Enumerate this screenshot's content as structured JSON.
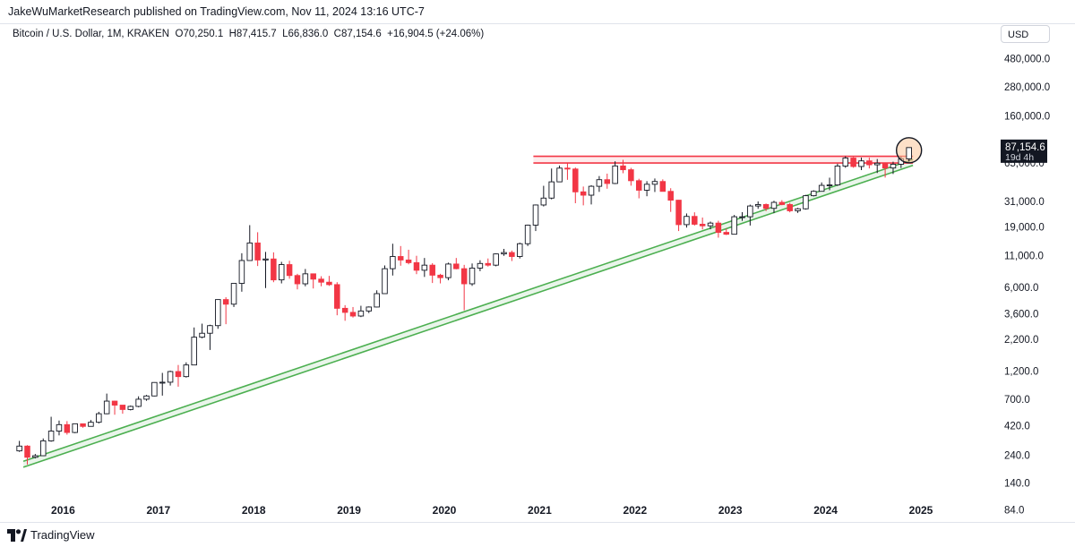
{
  "publish_line": "JakeWuMarketResearch published on TradingView.com, Nov 11, 2024 13:16 UTC-7",
  "symbol": {
    "name": "Bitcoin / U.S. Dollar, 1M, KRAKEN",
    "open_label": "O70,250.1",
    "high_label": "H87,415.7",
    "low_label": "L66,836.0",
    "close_label": "C87,154.6",
    "change_label": "+16,904.5 (+24.06%)"
  },
  "currency_button": "USD",
  "brand": "TradingView",
  "colors": {
    "up_candle": "#ffffff",
    "down_candle": "#f23645",
    "wick": "#131722",
    "resistance": "#f23645",
    "support": "#4caf50",
    "highlight": "#fbc79a"
  },
  "chart_data": {
    "type": "candlestick",
    "scale": "log",
    "x_ticks": [
      "2016",
      "2017",
      "2018",
      "2019",
      "2020",
      "2021",
      "2022",
      "2023",
      "2024",
      "2025"
    ],
    "y_ticks": [
      "480,000.0",
      "280,000.0",
      "160,000.0",
      "65,000.0",
      "31,000.0",
      "19,000.0",
      "11,000.0",
      "6,000.0",
      "3,600.0",
      "2,200.0",
      "1,200.0",
      "700.0",
      "420.0",
      "240.0",
      "140.0",
      "84.0"
    ],
    "last_price_label": "87,154.6",
    "countdown_label": "19d 4h",
    "ohlc_monthly": [
      [
        "2015-07",
        260,
        315,
        255,
        285
      ],
      [
        "2015-08",
        285,
        290,
        200,
        230
      ],
      [
        "2015-09",
        230,
        245,
        225,
        237
      ],
      [
        "2015-10",
        237,
        330,
        235,
        315
      ],
      [
        "2015-11",
        315,
        500,
        310,
        380
      ],
      [
        "2015-12",
        380,
        465,
        350,
        430
      ],
      [
        "2016-01",
        430,
        460,
        355,
        370
      ],
      [
        "2016-02",
        370,
        440,
        365,
        437
      ],
      [
        "2016-03",
        437,
        440,
        405,
        416
      ],
      [
        "2016-04",
        416,
        470,
        415,
        450
      ],
      [
        "2016-05",
        450,
        550,
        440,
        530
      ],
      [
        "2016-06",
        530,
        780,
        525,
        675
      ],
      [
        "2016-07",
        675,
        680,
        520,
        625
      ],
      [
        "2016-08",
        625,
        625,
        530,
        575
      ],
      [
        "2016-09",
        575,
        620,
        565,
        610
      ],
      [
        "2016-10",
        610,
        740,
        600,
        700
      ],
      [
        "2016-11",
        700,
        760,
        680,
        745
      ],
      [
        "2016-12",
        745,
        970,
        740,
        965
      ],
      [
        "2017-01",
        965,
        1160,
        750,
        970
      ],
      [
        "2017-02",
        970,
        1210,
        910,
        1190
      ],
      [
        "2017-03",
        1190,
        1350,
        890,
        1080
      ],
      [
        "2017-04",
        1080,
        1420,
        1060,
        1350
      ],
      [
        "2017-05",
        1350,
        2770,
        1345,
        2300
      ],
      [
        "2017-06",
        2300,
        2980,
        2250,
        2480
      ],
      [
        "2017-07",
        2480,
        2920,
        1800,
        2870
      ],
      [
        "2017-08",
        2870,
        4750,
        2700,
        4730
      ],
      [
        "2017-09",
        4730,
        4950,
        2950,
        4330
      ],
      [
        "2017-10",
        4330,
        6450,
        4100,
        6450
      ],
      [
        "2017-11",
        6450,
        11500,
        5500,
        10000
      ],
      [
        "2017-12",
        10000,
        19700,
        10000,
        14000
      ],
      [
        "2018-01",
        14000,
        17200,
        9000,
        10100
      ],
      [
        "2018-02",
        10100,
        11800,
        5900,
        10300
      ],
      [
        "2018-03",
        10300,
        11700,
        6600,
        6900
      ],
      [
        "2018-04",
        6900,
        9750,
        6450,
        9250
      ],
      [
        "2018-05",
        9250,
        9950,
        7050,
        7500
      ],
      [
        "2018-06",
        7500,
        7750,
        5750,
        6400
      ],
      [
        "2018-07",
        6400,
        8500,
        6100,
        7750
      ],
      [
        "2018-08",
        7750,
        7800,
        5850,
        7000
      ],
      [
        "2018-09",
        7000,
        7400,
        6100,
        6600
      ],
      [
        "2018-10",
        6600,
        7450,
        6150,
        6300
      ],
      [
        "2018-11",
        6300,
        6600,
        3500,
        4000
      ],
      [
        "2018-12",
        4000,
        4250,
        3150,
        3700
      ],
      [
        "2019-01",
        3700,
        4100,
        3350,
        3450
      ],
      [
        "2019-02",
        3450,
        4200,
        3380,
        3800
      ],
      [
        "2019-03",
        3800,
        4150,
        3650,
        4100
      ],
      [
        "2019-04",
        4100,
        5650,
        4070,
        5300
      ],
      [
        "2019-05",
        5300,
        9100,
        5300,
        8550
      ],
      [
        "2019-06",
        8550,
        13800,
        7500,
        10800
      ],
      [
        "2019-07",
        10800,
        13200,
        9050,
        10100
      ],
      [
        "2019-08",
        10100,
        12300,
        9300,
        9600
      ],
      [
        "2019-09",
        9600,
        10950,
        7700,
        8300
      ],
      [
        "2019-10",
        8300,
        10500,
        7300,
        9150
      ],
      [
        "2019-11",
        9150,
        9500,
        6500,
        7550
      ],
      [
        "2019-12",
        7550,
        7750,
        6450,
        7200
      ],
      [
        "2020-01",
        7200,
        9600,
        6850,
        9350
      ],
      [
        "2020-02",
        9350,
        10500,
        8450,
        8550
      ],
      [
        "2020-03",
        8550,
        9200,
        3850,
        6400
      ],
      [
        "2020-04",
        6400,
        9450,
        6150,
        8650
      ],
      [
        "2020-05",
        8650,
        10050,
        8150,
        9450
      ],
      [
        "2020-06",
        9450,
        10400,
        8900,
        9150
      ],
      [
        "2020-07",
        9150,
        11450,
        8950,
        11350
      ],
      [
        "2020-08",
        11350,
        12500,
        10950,
        11650
      ],
      [
        "2020-09",
        11650,
        12100,
        9900,
        10800
      ],
      [
        "2020-10",
        10800,
        14100,
        10400,
        13800
      ],
      [
        "2020-11",
        13800,
        19900,
        13200,
        19700
      ],
      [
        "2020-12",
        19700,
        29300,
        17600,
        29000
      ],
      [
        "2021-01",
        29000,
        41900,
        28200,
        33100
      ],
      [
        "2021-02",
        33100,
        58350,
        32300,
        45200
      ],
      [
        "2021-03",
        45200,
        61800,
        44950,
        58800
      ],
      [
        "2021-04",
        58800,
        64900,
        47000,
        57800
      ],
      [
        "2021-05",
        57800,
        59500,
        30000,
        37300
      ],
      [
        "2021-06",
        37300,
        41300,
        28800,
        35000
      ],
      [
        "2021-07",
        35000,
        42400,
        29300,
        41500
      ],
      [
        "2021-08",
        41500,
        50500,
        37300,
        47100
      ],
      [
        "2021-09",
        47100,
        52900,
        39600,
        43800
      ],
      [
        "2021-10",
        43800,
        67000,
        43300,
        61300
      ],
      [
        "2021-11",
        61300,
        69000,
        53300,
        57000
      ],
      [
        "2021-12",
        57000,
        59100,
        42000,
        46200
      ],
      [
        "2022-01",
        46200,
        47950,
        32950,
        38500
      ],
      [
        "2022-02",
        38500,
        45800,
        34300,
        43150
      ],
      [
        "2022-03",
        43150,
        48200,
        37200,
        45500
      ],
      [
        "2022-04",
        45500,
        47400,
        37700,
        37650
      ],
      [
        "2022-05",
        37650,
        40000,
        25400,
        31800
      ],
      [
        "2022-06",
        31800,
        31950,
        17600,
        19900
      ],
      [
        "2022-07",
        19900,
        24650,
        18800,
        23300
      ],
      [
        "2022-08",
        23300,
        25200,
        19550,
        20050
      ],
      [
        "2022-09",
        20050,
        22800,
        18150,
        19450
      ],
      [
        "2022-10",
        19450,
        21100,
        18200,
        20500
      ],
      [
        "2022-11",
        20500,
        21450,
        15500,
        17150
      ],
      [
        "2022-12",
        17150,
        18400,
        16300,
        16550
      ],
      [
        "2023-01",
        16550,
        23950,
        16500,
        23150
      ],
      [
        "2023-02",
        23150,
        25250,
        21400,
        23150
      ],
      [
        "2023-03",
        23150,
        29200,
        19550,
        28450
      ],
      [
        "2023-04",
        28450,
        31050,
        26950,
        29250
      ],
      [
        "2023-05",
        29250,
        29850,
        25800,
        27200
      ],
      [
        "2023-06",
        27200,
        31450,
        24800,
        30500
      ],
      [
        "2023-07",
        30500,
        31800,
        28850,
        29250
      ],
      [
        "2023-08",
        29250,
        30200,
        25200,
        25950
      ],
      [
        "2023-09",
        25950,
        27450,
        24900,
        26950
      ],
      [
        "2023-10",
        26950,
        35200,
        26550,
        34650
      ],
      [
        "2023-11",
        34650,
        38450,
        34150,
        37700
      ],
      [
        "2023-12",
        37700,
        44700,
        37600,
        42250
      ],
      [
        "2024-01",
        42250,
        48950,
        38500,
        42600
      ],
      [
        "2024-02",
        42600,
        63950,
        41850,
        61150
      ],
      [
        "2024-03",
        61150,
        73750,
        59150,
        71300
      ],
      [
        "2024-04",
        71300,
        72750,
        59200,
        60650
      ],
      [
        "2024-05",
        60650,
        71950,
        56550,
        67550
      ],
      [
        "2024-06",
        67550,
        71950,
        58450,
        62700
      ],
      [
        "2024-07",
        62700,
        70000,
        53550,
        64650
      ],
      [
        "2024-08",
        64650,
        65600,
        49050,
        58950
      ],
      [
        "2024-09",
        58950,
        66500,
        52550,
        63350
      ],
      [
        "2024-10",
        63350,
        73600,
        58900,
        70250
      ],
      [
        "2024-11",
        70250,
        87415.7,
        66836,
        87154.6
      ]
    ],
    "resistance_band": [
      64900,
      73750
    ],
    "support_channel": {
      "start": [
        "2015-08",
        190
      ],
      "end": [
        "2024-12",
        62000
      ],
      "upper_factor": 1.12
    }
  }
}
